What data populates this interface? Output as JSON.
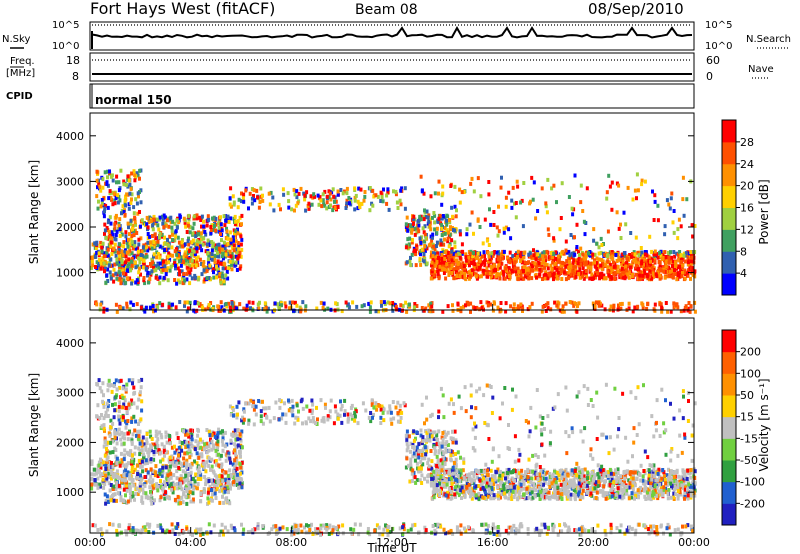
{
  "header": {
    "title": "Fort Hays West (fitACF)",
    "beam": "Beam 08",
    "date": "08/Sep/2010"
  },
  "status_panel": {
    "nsky_label": "N.Sky",
    "nsearch_label": "N.Search",
    "n_ticks": [
      "10^5",
      "10^0"
    ],
    "freq_label_top": "Freq.",
    "freq_label_bottom": "[MHz]",
    "freq_ticks": [
      "18",
      "8"
    ],
    "nave_label": "Nave",
    "nave_ticks": [
      "60",
      "0"
    ],
    "cpid_label": "CPID",
    "cpid_text": "normal 150"
  },
  "chart_data": [
    {
      "type": "heatmap",
      "name": "power",
      "ylabel": "Slant Range [km]",
      "xlabel": "",
      "x_range_hours": [
        0,
        24
      ],
      "ylim": [
        180,
        4500
      ],
      "y_ticks": [
        "1000",
        "2000",
        "3000",
        "4000"
      ],
      "colorbar": {
        "label": "Power [dB]",
        "ticks": [
          "4",
          "8",
          "12",
          "16",
          "20",
          "24",
          "28"
        ],
        "colors": [
          "#0000ff",
          "#3060b0",
          "#40a060",
          "#a0d040",
          "#ffd000",
          "#ff9000",
          "#ff5000",
          "#ff0000"
        ],
        "range": [
          0,
          30
        ]
      }
    },
    {
      "type": "heatmap",
      "name": "velocity",
      "ylabel": "Slant Range [km]",
      "xlabel": "Time UT",
      "x_range_hours": [
        0,
        24
      ],
      "x_ticks": [
        "00:00",
        "04:00",
        "08:00",
        "12:00",
        "16:00",
        "20:00",
        "00:00"
      ],
      "ylim": [
        180,
        4500
      ],
      "y_ticks": [
        "1000",
        "2000",
        "3000",
        "4000"
      ],
      "colorbar": {
        "label": "Velocity [m s⁻¹]",
        "ticks": [
          "200",
          "100",
          "50",
          "15",
          "-15",
          "-50",
          "-100",
          "-200"
        ],
        "colors": [
          "#2020c0",
          "#2060d0",
          "#30a040",
          "#70d040",
          "#c0c0c0",
          "#ffd000",
          "#ff9000",
          "#ff6000",
          "#ff0000"
        ]
      }
    }
  ]
}
